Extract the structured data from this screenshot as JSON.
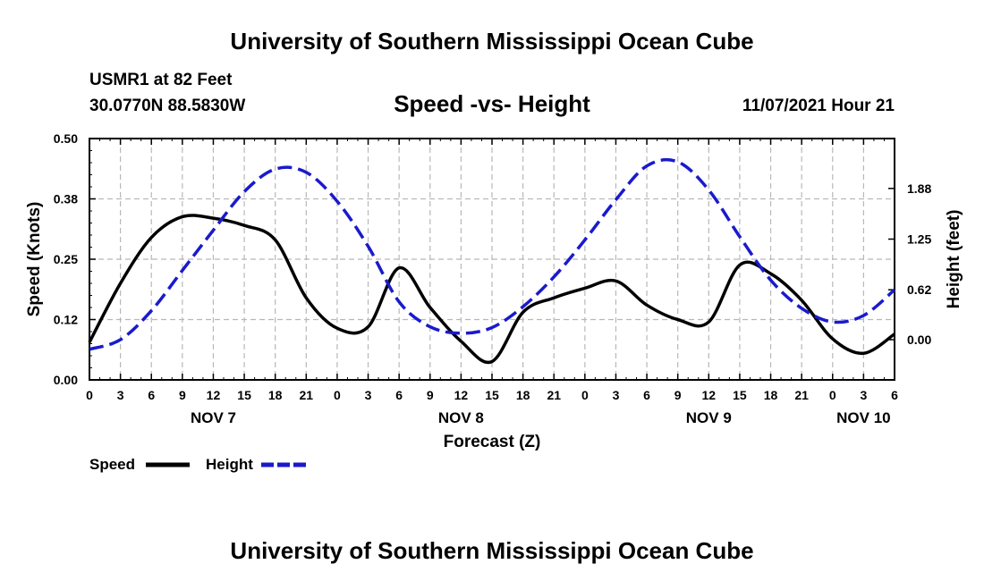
{
  "header": {
    "title": "University of Southern Mississippi Ocean Cube",
    "station": "USMR1 at 82 Feet",
    "coordinates": "30.0770N  88.5830W",
    "subtitle": "Speed -vs- Height",
    "datetime": "11/07/2021 Hour 21"
  },
  "footer": {
    "title": "University of Southern Mississippi Ocean Cube"
  },
  "chart_data": {
    "type": "line",
    "title": "Speed -vs- Height",
    "xlabel": "Forecast (Z)",
    "ylabel_left": "Speed (Knots)",
    "ylabel_right": "Height (feet)",
    "x_unit": "hours since NOV 7 00Z",
    "xlim": [
      0,
      78
    ],
    "ylim_left": [
      0,
      0.5
    ],
    "ylim_right": [
      -0.5,
      2.5
    ],
    "x_ticks": [
      0,
      3,
      6,
      9,
      12,
      15,
      18,
      21,
      24,
      27,
      30,
      33,
      36,
      39,
      42,
      45,
      48,
      51,
      54,
      57,
      60,
      63,
      66,
      69,
      72,
      75,
      78
    ],
    "x_tick_labels": [
      "0",
      "3",
      "6",
      "9",
      "12",
      "15",
      "18",
      "21",
      "0",
      "3",
      "6",
      "9",
      "12",
      "15",
      "18",
      "21",
      "0",
      "3",
      "6",
      "9",
      "12",
      "15",
      "18",
      "21",
      "0",
      "3",
      "6"
    ],
    "day_labels": [
      {
        "x": 12,
        "label": "NOV 7"
      },
      {
        "x": 36,
        "label": "NOV 8"
      },
      {
        "x": 60,
        "label": "NOV 9"
      },
      {
        "x": 75,
        "label": "NOV 10"
      }
    ],
    "left_ticks": [
      {
        "value": 0.0,
        "label": "0.00"
      },
      {
        "value": 0.125,
        "label": "0.12"
      },
      {
        "value": 0.25,
        "label": "0.25"
      },
      {
        "value": 0.375,
        "label": "0.38"
      },
      {
        "value": 0.5,
        "label": "0.50"
      }
    ],
    "right_ticks": [
      {
        "value": 0.0,
        "label": "0.00"
      },
      {
        "value": 0.62,
        "label": "0.62"
      },
      {
        "value": 1.25,
        "label": "1.25"
      },
      {
        "value": 1.88,
        "label": "1.88"
      }
    ],
    "grid": true,
    "legend_position": "bottom-left",
    "series": [
      {
        "name": "Speed",
        "axis": "left",
        "color": "#000000",
        "style": "solid",
        "x": [
          0,
          3,
          6,
          9,
          12,
          15,
          18,
          21,
          24,
          27,
          30,
          33,
          36,
          39,
          42,
          45,
          48,
          51,
          54,
          57,
          60,
          63,
          66,
          69,
          72,
          75,
          78
        ],
        "values": [
          0.078,
          0.2,
          0.295,
          0.338,
          0.335,
          0.32,
          0.29,
          0.17,
          0.107,
          0.11,
          0.232,
          0.15,
          0.08,
          0.038,
          0.14,
          0.17,
          0.19,
          0.205,
          0.155,
          0.125,
          0.12,
          0.238,
          0.22,
          0.165,
          0.085,
          0.055,
          0.095
        ]
      },
      {
        "name": "Height",
        "axis": "right",
        "color": "#1a1acc",
        "style": "dashed",
        "x": [
          0,
          3,
          6,
          9,
          12,
          15,
          18,
          21,
          24,
          27,
          30,
          33,
          36,
          39,
          42,
          45,
          48,
          51,
          54,
          57,
          60,
          63,
          66,
          69,
          72,
          75,
          78
        ],
        "values": [
          -0.12,
          0.0,
          0.36,
          0.86,
          1.36,
          1.84,
          2.12,
          2.08,
          1.72,
          1.16,
          0.47,
          0.16,
          0.08,
          0.15,
          0.41,
          0.78,
          1.24,
          1.74,
          2.16,
          2.21,
          1.86,
          1.28,
          0.74,
          0.39,
          0.22,
          0.3,
          0.62
        ]
      }
    ]
  },
  "legend": {
    "speed_label": "Speed",
    "height_label": "Height"
  }
}
